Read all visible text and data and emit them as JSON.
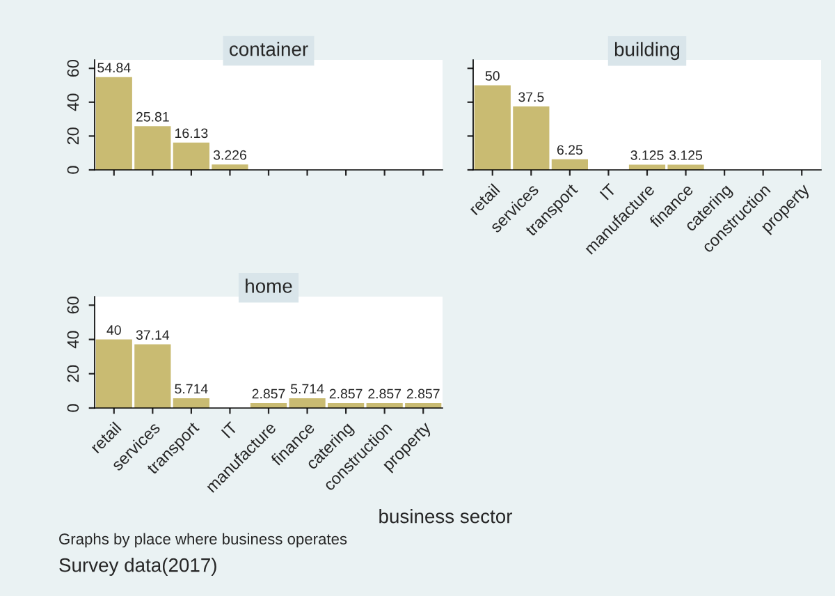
{
  "chart_data": [
    {
      "type": "bar",
      "title": "container",
      "categories": [
        null,
        null,
        null,
        null,
        null,
        null,
        null,
        null,
        null
      ],
      "values": [
        54.84,
        25.81,
        16.13,
        3.226,
        null,
        null,
        null,
        null,
        null
      ],
      "color": "#c9bb72",
      "ylim": [
        0,
        65
      ],
      "yticks": [
        0,
        20,
        40,
        60
      ],
      "data_labels": true,
      "tick_labels": "y",
      "grid": false,
      "legend": false
    },
    {
      "type": "bar",
      "title": "building",
      "categories": [
        "retail",
        "services",
        "transport",
        "IT",
        "manufacture",
        "finance",
        "catering",
        "construction",
        "property"
      ],
      "values": [
        50,
        37.5,
        6.25,
        null,
        3.125,
        3.125,
        null,
        null,
        null
      ],
      "color": "#c9bb72",
      "ylim": [
        0,
        65
      ],
      "yticks": [
        0,
        20,
        40,
        60
      ],
      "data_labels": true,
      "tick_labels": "x",
      "grid": false,
      "legend": false
    },
    {
      "type": "bar",
      "title": "home",
      "xlabel": "business sector",
      "categories": [
        "retail",
        "services",
        "transport",
        "IT",
        "manufacture",
        "finance",
        "catering",
        "construction",
        "property"
      ],
      "values": [
        40,
        37.14,
        5.714,
        null,
        2.857,
        5.714,
        2.857,
        2.857,
        2.857
      ],
      "color": "#c9bb72",
      "ylim": [
        0,
        65
      ],
      "yticks": [
        0,
        20,
        40,
        60
      ],
      "data_labels": true,
      "grid": false,
      "legend": false,
      "annotations": [
        "Graphs by place where business operates",
        "Survey data(2017)"
      ]
    }
  ]
}
